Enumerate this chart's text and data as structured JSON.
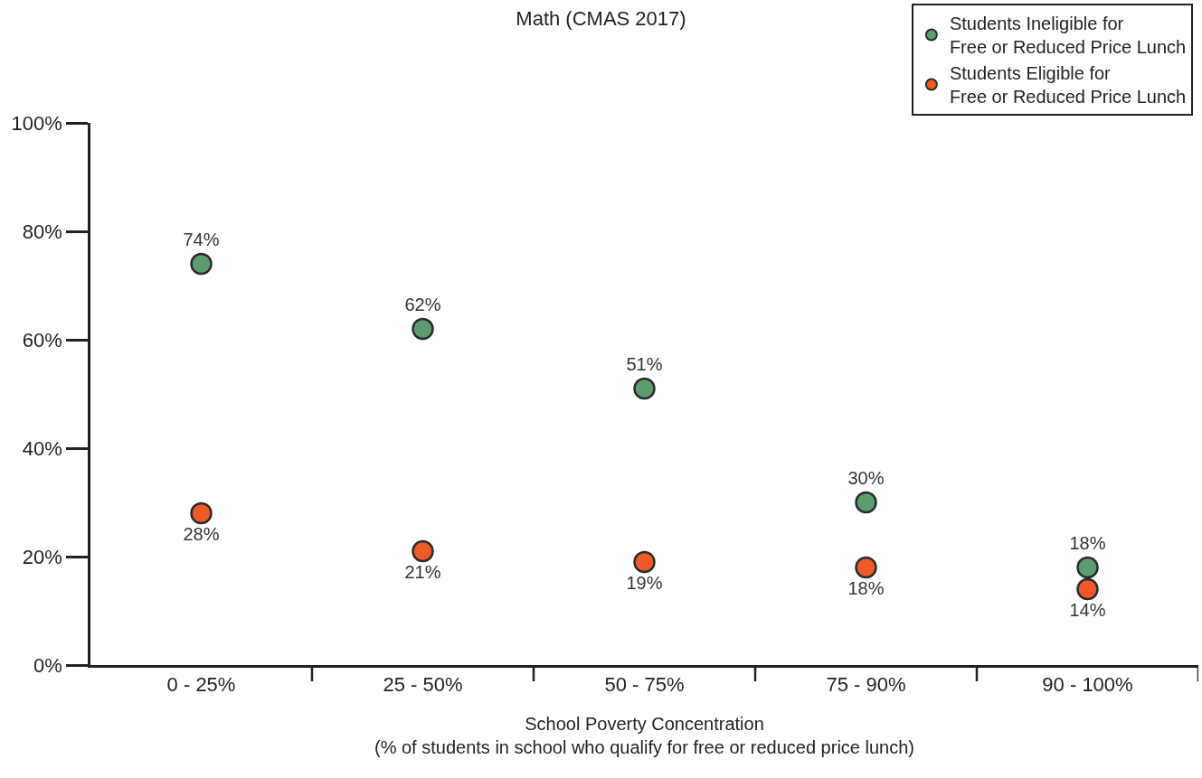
{
  "chart_data": {
    "type": "scatter",
    "title": "Math (CMAS 2017)",
    "xlabel": "School Poverty Concentration\n(% of students in school who qualify for free or reduced price lunch)",
    "categories": [
      "0 - 25%",
      "25 - 50%",
      "50 - 75%",
      "75 - 90%",
      "90 - 100%"
    ],
    "series": [
      {
        "name": "Students Ineligible for Free or Reduced Price Lunch",
        "color": "#5a9e6f",
        "values": [
          74,
          62,
          51,
          30,
          18
        ],
        "value_labels": [
          "74%",
          "62%",
          "51%",
          "30%",
          "18%"
        ]
      },
      {
        "name": "Students Eligible for Free or Reduced Price Lunch",
        "color": "#f05a28",
        "values": [
          28,
          21,
          19,
          18,
          14
        ],
        "value_labels": [
          "28%",
          "21%",
          "19%",
          "18%",
          "14%"
        ]
      }
    ],
    "ylim": [
      0,
      100
    ],
    "yticks": [
      {
        "value": 0,
        "label": "0%"
      },
      {
        "value": 20,
        "label": "20%"
      },
      {
        "value": 40,
        "label": "40%"
      },
      {
        "value": 60,
        "label": "60%"
      },
      {
        "value": 80,
        "label": "80%"
      },
      {
        "value": 100,
        "label": "100%"
      }
    ],
    "grid": false,
    "legend": "top right",
    "marker": "circle"
  }
}
